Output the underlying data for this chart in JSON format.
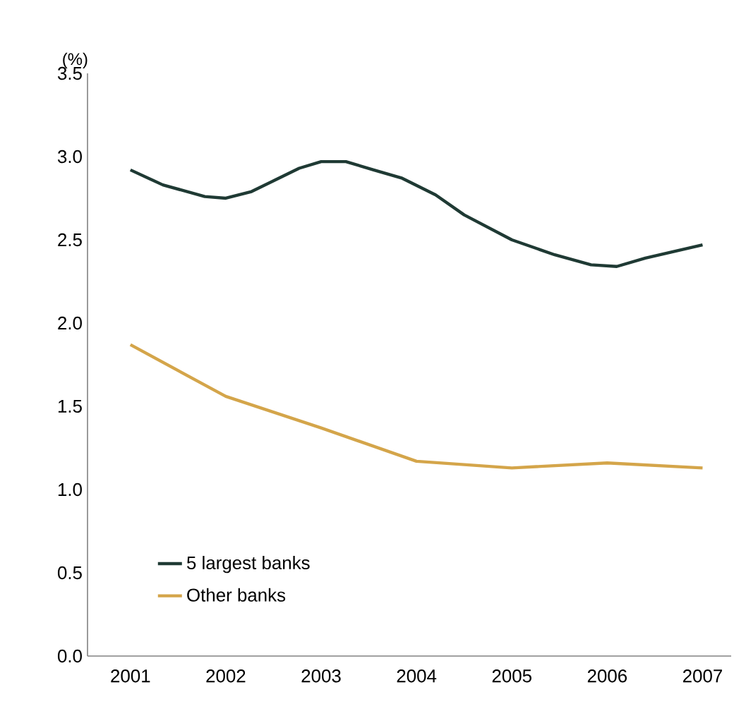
{
  "chart_data": {
    "type": "line",
    "ylabel": "(%)",
    "x": [
      2001,
      2001.34,
      2001.78,
      2002,
      2002.27,
      2002.52,
      2002.77,
      2003,
      2003.26,
      2003.55,
      2003.85,
      2004.2,
      2004.5,
      2005,
      2005.45,
      2005.83,
      2006.1,
      2006.4,
      2006.7,
      2007
    ],
    "series": [
      {
        "name": "5 largest banks",
        "color": "#1f3a34",
        "values": [
          2.92,
          2.83,
          2.76,
          2.75,
          2.79,
          2.86,
          2.93,
          2.97,
          2.97,
          2.92,
          2.87,
          2.77,
          2.65,
          2.5,
          2.41,
          2.35,
          2.34,
          2.39,
          2.43,
          2.47
        ]
      },
      {
        "name": "Other banks",
        "color": "#d4a54a",
        "x": [
          2001,
          2002,
          2003,
          2004,
          2005,
          2006,
          2007
        ],
        "values": [
          1.87,
          1.56,
          1.37,
          1.17,
          1.13,
          1.16,
          1.13
        ]
      }
    ],
    "xlim": [
      2000.55,
      2007.3
    ],
    "xticks": [
      2001,
      2002,
      2003,
      2004,
      2005,
      2006,
      2007
    ],
    "ylim": [
      0,
      3.5
    ],
    "yticks": [
      {
        "value": 0,
        "label": "0.0"
      },
      {
        "value": 0.5,
        "label": "0.5"
      },
      {
        "value": 1,
        "label": "1.0"
      },
      {
        "value": 1.5,
        "label": "1.5"
      },
      {
        "value": 2,
        "label": "2.0"
      },
      {
        "value": 2.5,
        "label": "2.5"
      },
      {
        "value": 3,
        "label": "3.0"
      },
      {
        "value": 3.5,
        "label": "3.5"
      }
    ],
    "grid": false,
    "legend": "bottom left",
    "marker": "none",
    "line_style": "solid"
  }
}
